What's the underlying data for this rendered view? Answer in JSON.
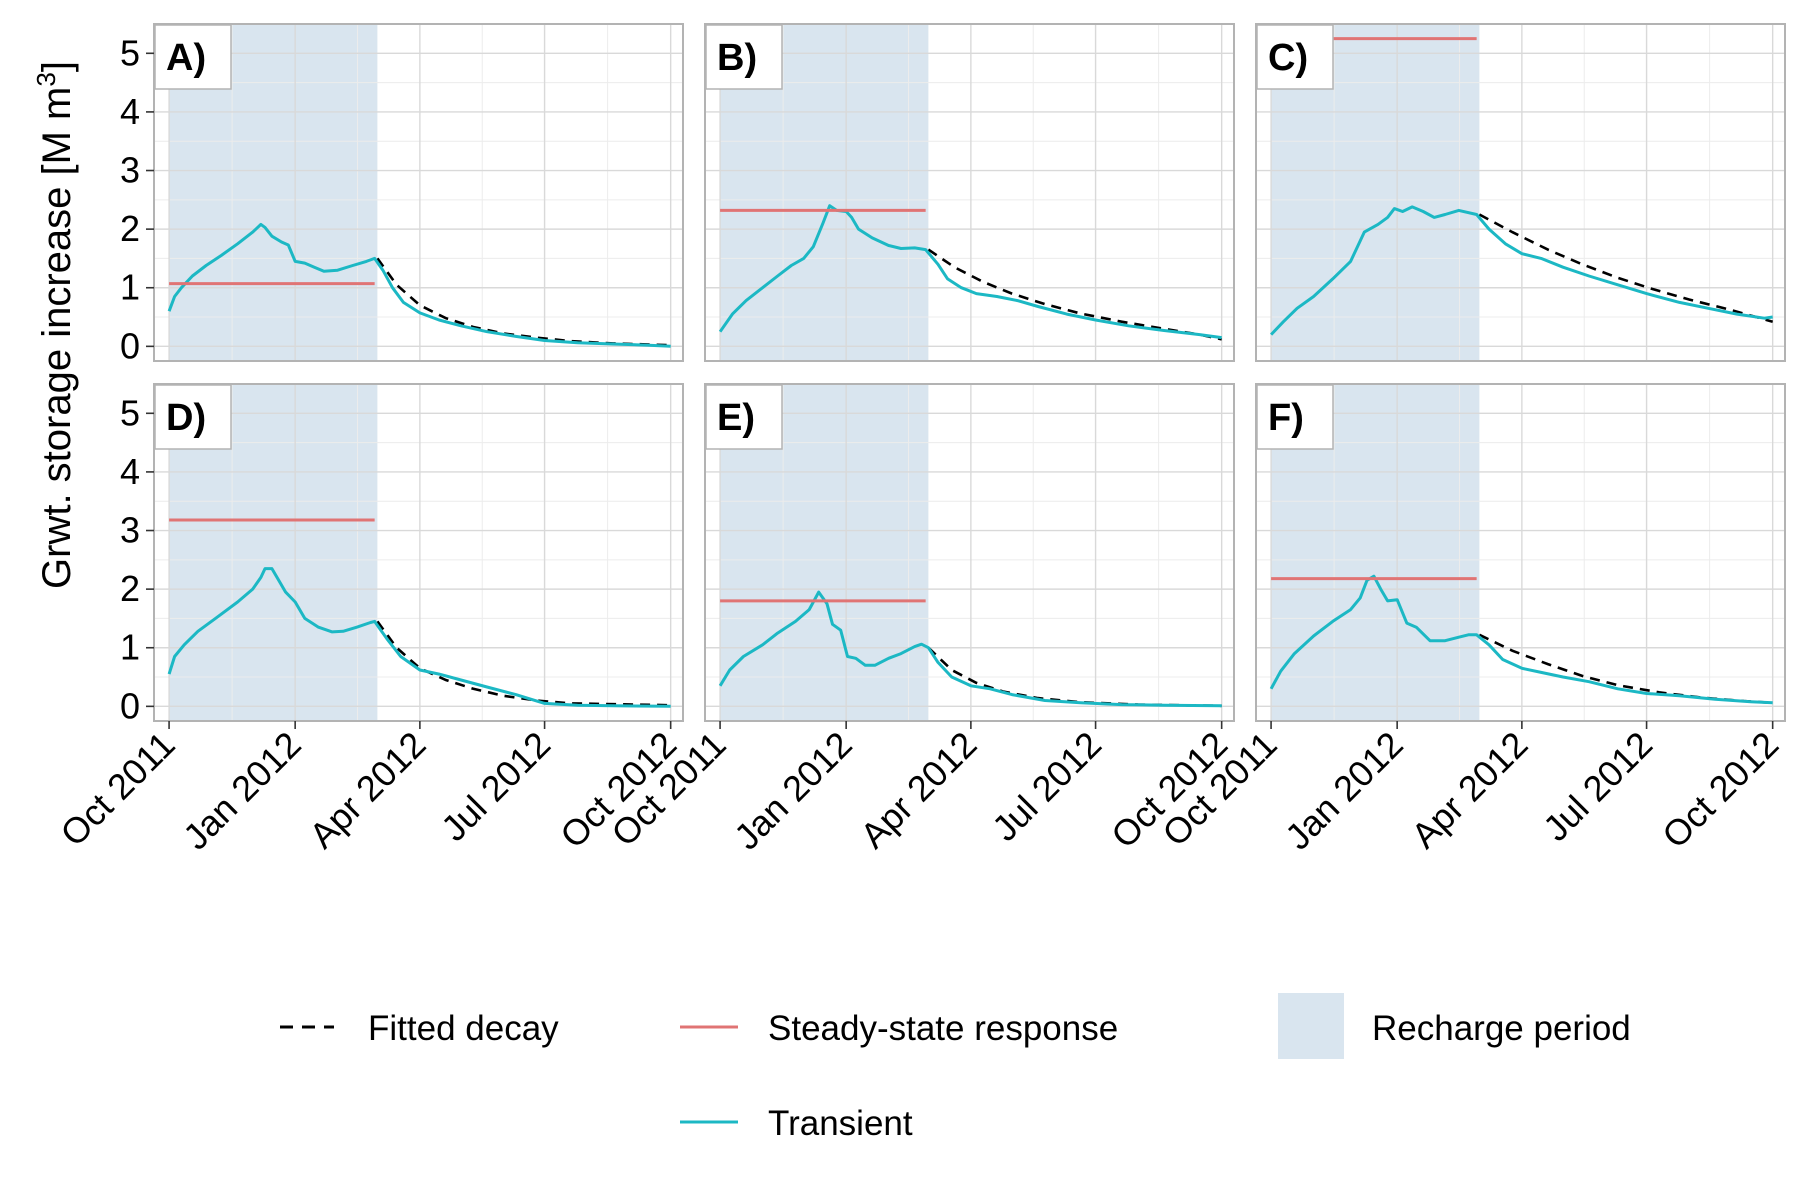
{
  "figure": {
    "ylabel": "Grwt. storage increase [M m",
    "ylabel_sup": "3",
    "ylabel_close": "]"
  },
  "legend": {
    "fitted_label": "Fitted decay",
    "steady_label": "Steady-state response",
    "recharge_label": "Recharge period",
    "transient_label": "Transient"
  },
  "colors": {
    "transient": "#1cb8c4",
    "steady": "#e07474",
    "fitted": "#000000",
    "recharge": "#d9e5ef",
    "grid_major": "#d9d9d9",
    "grid_minor": "#ececec",
    "frame": "#b3b3b3"
  },
  "chart_data": {
    "type": "line",
    "facets": "2x3",
    "x_axis": {
      "type": "date",
      "range": [
        "2011-09-20",
        "2012-10-10"
      ],
      "ticks": [
        "2011-10-01",
        "2012-01-01",
        "2012-04-01",
        "2012-07-01",
        "2012-10-01"
      ],
      "tick_labels": [
        "Oct 2011",
        "Jan 2012",
        "Apr 2012",
        "Jul 2012",
        "Oct 2012"
      ]
    },
    "y_axis": {
      "range": [
        -0.25,
        5.5
      ],
      "ticks": [
        0,
        1,
        2,
        3,
        4,
        5
      ]
    },
    "recharge_period": [
      "2011-10-01",
      "2012-03-01"
    ],
    "series_names": [
      "Fitted decay",
      "Steady-state response",
      "Recharge period",
      "Transient"
    ],
    "panels": [
      {
        "label": "A)",
        "steady": {
          "start": "2011-10-01",
          "end": "2012-02-28",
          "value": 1.07
        },
        "transient": [
          [
            "2011-10-01",
            0.6
          ],
          [
            "2011-10-05",
            0.85
          ],
          [
            "2011-10-10",
            1.0
          ],
          [
            "2011-10-18",
            1.2
          ],
          [
            "2011-10-28",
            1.38
          ],
          [
            "2011-11-08",
            1.55
          ],
          [
            "2011-11-20",
            1.75
          ],
          [
            "2011-12-01",
            1.95
          ],
          [
            "2011-12-07",
            2.08
          ],
          [
            "2011-12-10",
            2.03
          ],
          [
            "2011-12-15",
            1.88
          ],
          [
            "2011-12-22",
            1.78
          ],
          [
            "2011-12-27",
            1.73
          ],
          [
            "2012-01-01",
            1.45
          ],
          [
            "2012-01-08",
            1.42
          ],
          [
            "2012-01-15",
            1.35
          ],
          [
            "2012-01-22",
            1.28
          ],
          [
            "2012-02-01",
            1.3
          ],
          [
            "2012-02-12",
            1.38
          ],
          [
            "2012-02-22",
            1.45
          ],
          [
            "2012-02-28",
            1.5
          ],
          [
            "2012-03-05",
            1.3
          ],
          [
            "2012-03-12",
            1.0
          ],
          [
            "2012-03-20",
            0.75
          ],
          [
            "2012-04-01",
            0.57
          ],
          [
            "2012-04-15",
            0.45
          ],
          [
            "2012-05-01",
            0.35
          ],
          [
            "2012-05-20",
            0.25
          ],
          [
            "2012-06-10",
            0.17
          ],
          [
            "2012-07-01",
            0.1
          ],
          [
            "2012-07-25",
            0.06
          ],
          [
            "2012-08-20",
            0.04
          ],
          [
            "2012-09-15",
            0.02
          ],
          [
            "2012-10-01",
            0.0
          ]
        ],
        "fitted": [
          [
            "2012-03-01",
            1.5
          ],
          [
            "2012-03-15",
            1.05
          ],
          [
            "2012-04-01",
            0.7
          ],
          [
            "2012-04-20",
            0.48
          ],
          [
            "2012-05-10",
            0.33
          ],
          [
            "2012-06-01",
            0.22
          ],
          [
            "2012-06-25",
            0.15
          ],
          [
            "2012-07-20",
            0.09
          ],
          [
            "2012-08-20",
            0.05
          ],
          [
            "2012-10-01",
            0.02
          ]
        ]
      },
      {
        "label": "B)",
        "steady": {
          "start": "2011-10-01",
          "end": "2012-02-28",
          "value": 2.32
        },
        "transient": [
          [
            "2011-10-01",
            0.25
          ],
          [
            "2011-10-10",
            0.55
          ],
          [
            "2011-10-20",
            0.78
          ],
          [
            "2011-11-01",
            1.0
          ],
          [
            "2011-11-12",
            1.2
          ],
          [
            "2011-11-22",
            1.38
          ],
          [
            "2011-12-01",
            1.5
          ],
          [
            "2011-12-08",
            1.7
          ],
          [
            "2011-12-15",
            2.1
          ],
          [
            "2011-12-20",
            2.4
          ],
          [
            "2011-12-25",
            2.32
          ],
          [
            "2012-01-01",
            2.3
          ],
          [
            "2012-01-05",
            2.2
          ],
          [
            "2012-01-10",
            2.0
          ],
          [
            "2012-01-20",
            1.85
          ],
          [
            "2012-02-01",
            1.72
          ],
          [
            "2012-02-10",
            1.67
          ],
          [
            "2012-02-20",
            1.68
          ],
          [
            "2012-02-28",
            1.65
          ],
          [
            "2012-03-08",
            1.4
          ],
          [
            "2012-03-15",
            1.15
          ],
          [
            "2012-03-25",
            1.0
          ],
          [
            "2012-04-05",
            0.9
          ],
          [
            "2012-04-20",
            0.85
          ],
          [
            "2012-05-05",
            0.78
          ],
          [
            "2012-05-20",
            0.68
          ],
          [
            "2012-06-10",
            0.55
          ],
          [
            "2012-07-01",
            0.45
          ],
          [
            "2012-07-25",
            0.35
          ],
          [
            "2012-08-20",
            0.27
          ],
          [
            "2012-09-15",
            0.2
          ],
          [
            "2012-10-01",
            0.15
          ]
        ],
        "fitted": [
          [
            "2012-03-01",
            1.65
          ],
          [
            "2012-03-20",
            1.35
          ],
          [
            "2012-04-10",
            1.1
          ],
          [
            "2012-05-01",
            0.9
          ],
          [
            "2012-05-25",
            0.72
          ],
          [
            "2012-06-20",
            0.56
          ],
          [
            "2012-07-20",
            0.42
          ],
          [
            "2012-08-20",
            0.3
          ],
          [
            "2012-09-15",
            0.2
          ],
          [
            "2012-10-01",
            0.12
          ]
        ]
      },
      {
        "label": "C)",
        "steady": {
          "start": "2011-11-15",
          "end": "2012-02-28",
          "value": 5.25
        },
        "transient": [
          [
            "2011-10-01",
            0.2
          ],
          [
            "2011-10-10",
            0.42
          ],
          [
            "2011-10-20",
            0.65
          ],
          [
            "2011-11-01",
            0.85
          ],
          [
            "2011-11-15",
            1.15
          ],
          [
            "2011-11-28",
            1.45
          ],
          [
            "2011-12-08",
            1.95
          ],
          [
            "2011-12-18",
            2.08
          ],
          [
            "2011-12-25",
            2.2
          ],
          [
            "2011-12-30",
            2.35
          ],
          [
            "2012-01-05",
            2.3
          ],
          [
            "2012-01-12",
            2.38
          ],
          [
            "2012-01-20",
            2.3
          ],
          [
            "2012-01-28",
            2.2
          ],
          [
            "2012-02-05",
            2.25
          ],
          [
            "2012-02-15",
            2.32
          ],
          [
            "2012-02-28",
            2.25
          ],
          [
            "2012-03-08",
            2.0
          ],
          [
            "2012-03-20",
            1.75
          ],
          [
            "2012-04-01",
            1.58
          ],
          [
            "2012-04-15",
            1.5
          ],
          [
            "2012-05-01",
            1.35
          ],
          [
            "2012-05-20",
            1.2
          ],
          [
            "2012-06-10",
            1.05
          ],
          [
            "2012-07-01",
            0.9
          ],
          [
            "2012-07-25",
            0.75
          ],
          [
            "2012-08-15",
            0.65
          ],
          [
            "2012-09-05",
            0.55
          ],
          [
            "2012-09-25",
            0.48
          ],
          [
            "2012-10-01",
            0.5
          ]
        ],
        "fitted": [
          [
            "2012-03-01",
            2.25
          ],
          [
            "2012-03-25",
            1.95
          ],
          [
            "2012-04-20",
            1.65
          ],
          [
            "2012-05-15",
            1.4
          ],
          [
            "2012-06-10",
            1.17
          ],
          [
            "2012-07-05",
            0.98
          ],
          [
            "2012-08-01",
            0.8
          ],
          [
            "2012-08-30",
            0.63
          ],
          [
            "2012-10-01",
            0.42
          ]
        ]
      },
      {
        "label": "D)",
        "steady": {
          "start": "2011-10-01",
          "end": "2012-02-28",
          "value": 3.18
        },
        "transient": [
          [
            "2011-10-01",
            0.55
          ],
          [
            "2011-10-05",
            0.85
          ],
          [
            "2011-10-12",
            1.05
          ],
          [
            "2011-10-22",
            1.28
          ],
          [
            "2011-11-05",
            1.52
          ],
          [
            "2011-11-20",
            1.78
          ],
          [
            "2011-12-01",
            2.0
          ],
          [
            "2011-12-07",
            2.2
          ],
          [
            "2011-12-10",
            2.35
          ],
          [
            "2011-12-15",
            2.35
          ],
          [
            "2011-12-20",
            2.15
          ],
          [
            "2011-12-25",
            1.95
          ],
          [
            "2012-01-01",
            1.78
          ],
          [
            "2012-01-08",
            1.5
          ],
          [
            "2012-01-18",
            1.35
          ],
          [
            "2012-01-28",
            1.27
          ],
          [
            "2012-02-05",
            1.28
          ],
          [
            "2012-02-15",
            1.35
          ],
          [
            "2012-02-25",
            1.43
          ],
          [
            "2012-02-28",
            1.45
          ],
          [
            "2012-03-08",
            1.15
          ],
          [
            "2012-03-18",
            0.85
          ],
          [
            "2012-04-01",
            0.62
          ],
          [
            "2012-04-15",
            0.55
          ],
          [
            "2012-05-01",
            0.45
          ],
          [
            "2012-05-20",
            0.33
          ],
          [
            "2012-06-10",
            0.2
          ],
          [
            "2012-07-01",
            0.05
          ],
          [
            "2012-07-25",
            0.02
          ],
          [
            "2012-08-20",
            0.01
          ],
          [
            "2012-10-01",
            0.0
          ]
        ],
        "fitted": [
          [
            "2012-03-01",
            1.45
          ],
          [
            "2012-03-15",
            1.0
          ],
          [
            "2012-04-01",
            0.65
          ],
          [
            "2012-04-20",
            0.45
          ],
          [
            "2012-05-10",
            0.3
          ],
          [
            "2012-06-01",
            0.18
          ],
          [
            "2012-06-25",
            0.1
          ],
          [
            "2012-07-20",
            0.05
          ],
          [
            "2012-10-01",
            0.02
          ]
        ]
      },
      {
        "label": "E)",
        "steady": {
          "start": "2011-10-01",
          "end": "2012-02-28",
          "value": 1.8
        },
        "transient": [
          [
            "2011-10-01",
            0.35
          ],
          [
            "2011-10-08",
            0.62
          ],
          [
            "2011-10-18",
            0.85
          ],
          [
            "2011-11-01",
            1.05
          ],
          [
            "2011-11-12",
            1.25
          ],
          [
            "2011-11-25",
            1.45
          ],
          [
            "2011-12-05",
            1.65
          ],
          [
            "2011-12-12",
            1.95
          ],
          [
            "2011-12-18",
            1.75
          ],
          [
            "2011-12-22",
            1.4
          ],
          [
            "2011-12-28",
            1.3
          ],
          [
            "2012-01-02",
            0.85
          ],
          [
            "2012-01-08",
            0.82
          ],
          [
            "2012-01-15",
            0.7
          ],
          [
            "2012-01-22",
            0.7
          ],
          [
            "2012-02-01",
            0.82
          ],
          [
            "2012-02-10",
            0.9
          ],
          [
            "2012-02-20",
            1.02
          ],
          [
            "2012-02-25",
            1.06
          ],
          [
            "2012-03-01",
            1.0
          ],
          [
            "2012-03-08",
            0.75
          ],
          [
            "2012-03-18",
            0.5
          ],
          [
            "2012-04-01",
            0.35
          ],
          [
            "2012-04-15",
            0.3
          ],
          [
            "2012-05-01",
            0.2
          ],
          [
            "2012-05-25",
            0.1
          ],
          [
            "2012-06-20",
            0.06
          ],
          [
            "2012-07-20",
            0.03
          ],
          [
            "2012-08-20",
            0.02
          ],
          [
            "2012-10-01",
            0.01
          ]
        ],
        "fitted": [
          [
            "2012-03-01",
            1.0
          ],
          [
            "2012-03-18",
            0.62
          ],
          [
            "2012-04-05",
            0.4
          ],
          [
            "2012-04-25",
            0.25
          ],
          [
            "2012-05-20",
            0.14
          ],
          [
            "2012-06-20",
            0.07
          ],
          [
            "2012-08-01",
            0.03
          ],
          [
            "2012-10-01",
            0.01
          ]
        ]
      },
      {
        "label": "F)",
        "steady": {
          "start": "2011-10-01",
          "end": "2012-02-28",
          "value": 2.18
        },
        "transient": [
          [
            "2011-10-01",
            0.3
          ],
          [
            "2011-10-08",
            0.6
          ],
          [
            "2011-10-18",
            0.9
          ],
          [
            "2011-11-01",
            1.2
          ],
          [
            "2011-11-15",
            1.45
          ],
          [
            "2011-11-28",
            1.65
          ],
          [
            "2011-12-05",
            1.85
          ],
          [
            "2011-12-10",
            2.15
          ],
          [
            "2011-12-15",
            2.22
          ],
          [
            "2011-12-20",
            2.0
          ],
          [
            "2011-12-25",
            1.8
          ],
          [
            "2012-01-01",
            1.82
          ],
          [
            "2012-01-08",
            1.42
          ],
          [
            "2012-01-15",
            1.35
          ],
          [
            "2012-01-25",
            1.12
          ],
          [
            "2012-02-05",
            1.12
          ],
          [
            "2012-02-15",
            1.18
          ],
          [
            "2012-02-22",
            1.22
          ],
          [
            "2012-02-28",
            1.22
          ],
          [
            "2012-03-08",
            1.05
          ],
          [
            "2012-03-18",
            0.8
          ],
          [
            "2012-04-01",
            0.65
          ],
          [
            "2012-04-15",
            0.58
          ],
          [
            "2012-05-01",
            0.5
          ],
          [
            "2012-05-20",
            0.42
          ],
          [
            "2012-06-10",
            0.3
          ],
          [
            "2012-07-01",
            0.22
          ],
          [
            "2012-07-25",
            0.18
          ],
          [
            "2012-08-20",
            0.12
          ],
          [
            "2012-09-15",
            0.08
          ],
          [
            "2012-10-01",
            0.06
          ]
        ],
        "fitted": [
          [
            "2012-03-01",
            1.22
          ],
          [
            "2012-03-25",
            0.95
          ],
          [
            "2012-04-20",
            0.72
          ],
          [
            "2012-05-15",
            0.52
          ],
          [
            "2012-06-10",
            0.36
          ],
          [
            "2012-07-10",
            0.24
          ],
          [
            "2012-08-10",
            0.15
          ],
          [
            "2012-09-10",
            0.09
          ],
          [
            "2012-10-01",
            0.06
          ]
        ]
      }
    ]
  }
}
